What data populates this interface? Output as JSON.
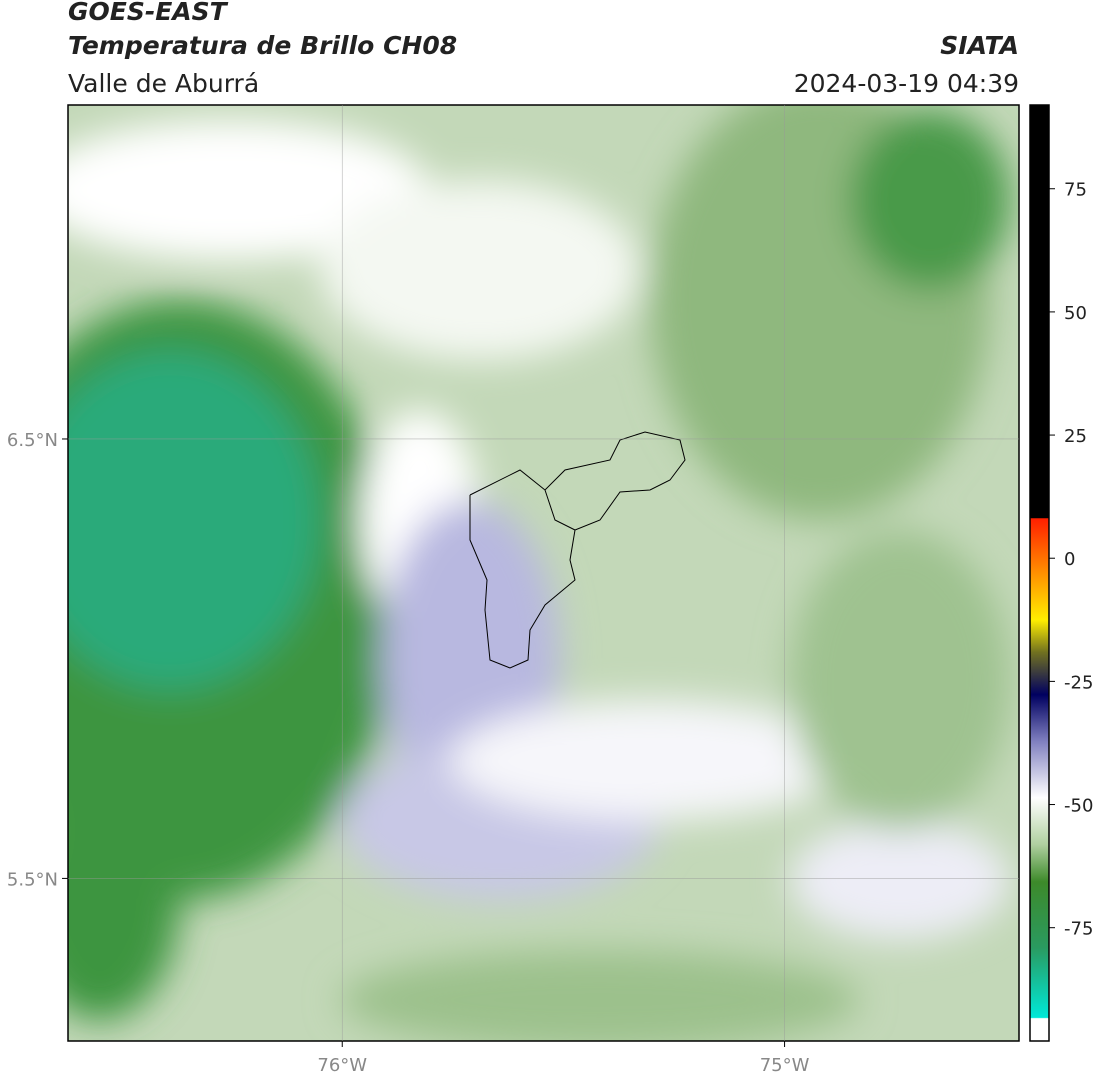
{
  "header": {
    "title": "GOES-EAST",
    "subtitle": "Temperatura de Brillo CH08",
    "region": "Valle de Aburrá",
    "source": "SIATA",
    "datetime": "2024-03-19 04:39"
  },
  "map": {
    "lonlim": [
      -76.62,
      -74.47
    ],
    "latlim": [
      5.13,
      7.26
    ],
    "xticks": [
      {
        "value": -76,
        "label": "76°W"
      },
      {
        "value": -75,
        "label": "75°W"
      }
    ],
    "yticks": [
      {
        "value": 6.5,
        "label": "6.5°N"
      },
      {
        "value": 5.5,
        "label": "5.5°N"
      }
    ],
    "grid": true
  },
  "colorbar": {
    "clim": [
      -98,
      92
    ],
    "ticks": [
      75,
      50,
      25,
      0,
      -25,
      -50,
      -75
    ]
  }
}
